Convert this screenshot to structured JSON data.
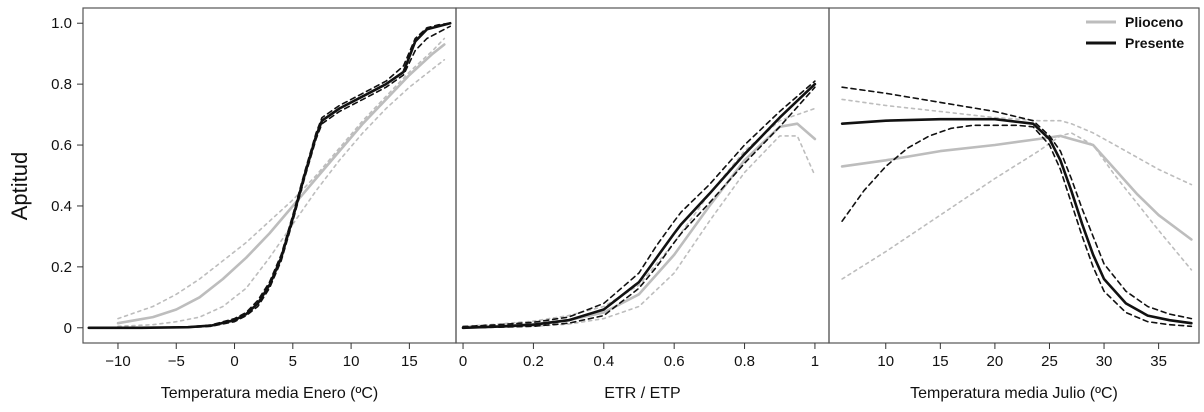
{
  "ylabel": "Aptitud",
  "legend": [
    {
      "label": "Plioceno",
      "color": "#bdbdbd"
    },
    {
      "label": "Presente",
      "color": "#111111"
    }
  ],
  "chart_data": [
    {
      "type": "line",
      "xlabel": "Temperatura media Enero (ºC)",
      "ylabel": "Aptitud",
      "xlim": [
        -13,
        19
      ],
      "ylim": [
        -0.05,
        1.05
      ],
      "xticks": [
        {
          "v": -10,
          "label": "−10"
        },
        {
          "v": -5,
          "label": "−5"
        },
        {
          "v": 0,
          "label": "0"
        },
        {
          "v": 5,
          "label": "5"
        },
        {
          "v": 10,
          "label": "10"
        },
        {
          "v": 15,
          "label": "15"
        }
      ],
      "yticks": [
        {
          "v": 0,
          "label": "0"
        },
        {
          "v": 0.2,
          "label": "0.2"
        },
        {
          "v": 0.4,
          "label": "0.4"
        },
        {
          "v": 0.6,
          "label": "0.6"
        },
        {
          "v": 0.8,
          "label": "0.8"
        },
        {
          "v": 1.0,
          "label": "1.0"
        }
      ],
      "series": [
        {
          "color": "#bdbdbd",
          "style": "solid",
          "x": [
            -10,
            -7,
            -5,
            -3,
            -1,
            1,
            3,
            5,
            7,
            9,
            11,
            13,
            15,
            17,
            18
          ],
          "y": [
            0.015,
            0.035,
            0.06,
            0.1,
            0.16,
            0.23,
            0.31,
            0.4,
            0.49,
            0.58,
            0.67,
            0.75,
            0.83,
            0.9,
            0.93
          ]
        },
        {
          "color": "#bdbdbd",
          "style": "dotted",
          "x": [
            -10,
            -7,
            -5,
            -3,
            -1,
            1,
            3,
            5,
            7,
            9,
            11,
            13,
            15,
            17,
            18
          ],
          "y": [
            0.03,
            0.07,
            0.11,
            0.16,
            0.22,
            0.28,
            0.35,
            0.42,
            0.5,
            0.59,
            0.68,
            0.76,
            0.84,
            0.91,
            0.95
          ]
        },
        {
          "color": "#bdbdbd",
          "style": "dotted",
          "x": [
            -10,
            -7,
            -5,
            -3,
            -1,
            1,
            3,
            5,
            7,
            9,
            11,
            13,
            15,
            17,
            18
          ],
          "y": [
            0.005,
            0.01,
            0.02,
            0.035,
            0.07,
            0.13,
            0.23,
            0.34,
            0.45,
            0.55,
            0.64,
            0.72,
            0.79,
            0.85,
            0.88
          ]
        },
        {
          "color": "#111111",
          "style": "solid",
          "x": [
            -12.5,
            -8,
            -4,
            -2,
            0,
            1,
            2,
            3,
            4,
            5,
            6,
            7,
            7.5,
            9,
            11,
            13,
            14.5,
            15.5,
            16.5,
            17.5,
            18.5
          ],
          "y": [
            0,
            0,
            0.002,
            0.007,
            0.025,
            0.045,
            0.08,
            0.14,
            0.23,
            0.36,
            0.5,
            0.63,
            0.68,
            0.72,
            0.76,
            0.8,
            0.84,
            0.94,
            0.98,
            0.99,
            1.0
          ]
        },
        {
          "color": "#111111",
          "style": "dashed",
          "x": [
            -12.5,
            -8,
            -4,
            -2,
            0,
            1,
            2,
            3,
            4,
            5,
            6,
            7,
            7.5,
            9,
            11,
            13,
            14.5,
            15.5,
            16.5,
            17.5,
            18.5
          ],
          "y": [
            0,
            0,
            0.003,
            0.009,
            0.03,
            0.05,
            0.09,
            0.15,
            0.24,
            0.37,
            0.51,
            0.64,
            0.69,
            0.73,
            0.77,
            0.81,
            0.86,
            0.95,
            0.985,
            0.995,
            1.0
          ]
        },
        {
          "color": "#111111",
          "style": "dashed",
          "x": [
            -12.5,
            -8,
            -4,
            -2,
            0,
            1,
            2,
            3,
            4,
            5,
            6,
            7,
            7.5,
            9,
            11,
            13,
            14.5,
            15.5,
            16.5,
            17.5,
            18.5
          ],
          "y": [
            0,
            0,
            0.001,
            0.005,
            0.02,
            0.04,
            0.07,
            0.13,
            0.22,
            0.35,
            0.49,
            0.62,
            0.67,
            0.71,
            0.75,
            0.79,
            0.83,
            0.91,
            0.95,
            0.97,
            0.99
          ]
        }
      ]
    },
    {
      "type": "line",
      "xlabel": "ETR / ETP",
      "ylabel": "Aptitud",
      "xlim": [
        -0.02,
        1.04
      ],
      "ylim": [
        -0.05,
        1.05
      ],
      "xticks": [
        {
          "v": 0,
          "label": "0"
        },
        {
          "v": 0.2,
          "label": "0.2"
        },
        {
          "v": 0.4,
          "label": "0.4"
        },
        {
          "v": 0.6,
          "label": "0.6"
        },
        {
          "v": 0.8,
          "label": "0.8"
        },
        {
          "v": 1,
          "label": "1"
        }
      ],
      "yticks": [],
      "series": [
        {
          "color": "#bdbdbd",
          "style": "solid",
          "x": [
            0,
            0.1,
            0.2,
            0.3,
            0.4,
            0.5,
            0.6,
            0.7,
            0.8,
            0.9,
            0.95,
            1.0
          ],
          "y": [
            0,
            0.005,
            0.012,
            0.025,
            0.05,
            0.11,
            0.24,
            0.4,
            0.55,
            0.66,
            0.67,
            0.62
          ]
        },
        {
          "color": "#bdbdbd",
          "style": "dotted",
          "x": [
            0,
            0.1,
            0.2,
            0.3,
            0.4,
            0.5,
            0.6,
            0.7,
            0.8,
            0.9,
            0.95,
            1.0
          ],
          "y": [
            0.005,
            0.012,
            0.022,
            0.04,
            0.07,
            0.14,
            0.28,
            0.44,
            0.58,
            0.68,
            0.7,
            0.72
          ]
        },
        {
          "color": "#bdbdbd",
          "style": "dotted",
          "x": [
            0,
            0.1,
            0.2,
            0.3,
            0.4,
            0.5,
            0.6,
            0.7,
            0.8,
            0.9,
            0.95,
            1.0
          ],
          "y": [
            0,
            0.002,
            0.005,
            0.012,
            0.03,
            0.07,
            0.18,
            0.35,
            0.51,
            0.63,
            0.63,
            0.5
          ]
        },
        {
          "color": "#111111",
          "style": "solid",
          "x": [
            0,
            0.1,
            0.2,
            0.3,
            0.4,
            0.5,
            0.55,
            0.6,
            0.62,
            0.7,
            0.8,
            0.9,
            1.0
          ],
          "y": [
            0,
            0.004,
            0.01,
            0.025,
            0.06,
            0.15,
            0.23,
            0.31,
            0.34,
            0.44,
            0.57,
            0.69,
            0.8
          ]
        },
        {
          "color": "#111111",
          "style": "dashed",
          "x": [
            0,
            0.1,
            0.2,
            0.3,
            0.4,
            0.5,
            0.55,
            0.6,
            0.62,
            0.7,
            0.8,
            0.9,
            1.0
          ],
          "y": [
            0.004,
            0.01,
            0.018,
            0.035,
            0.08,
            0.18,
            0.27,
            0.35,
            0.38,
            0.47,
            0.6,
            0.71,
            0.81
          ]
        },
        {
          "color": "#111111",
          "style": "dashed",
          "x": [
            0,
            0.1,
            0.2,
            0.3,
            0.4,
            0.5,
            0.55,
            0.6,
            0.62,
            0.7,
            0.8,
            0.9,
            1.0
          ],
          "y": [
            0,
            0.002,
            0.005,
            0.015,
            0.04,
            0.13,
            0.2,
            0.28,
            0.31,
            0.41,
            0.54,
            0.66,
            0.79
          ]
        }
      ]
    },
    {
      "type": "line",
      "xlabel": "Temperatura media Julio (ºC)",
      "ylabel": "Aptitud",
      "xlim": [
        4.8,
        38.7
      ],
      "ylim": [
        -0.05,
        1.05
      ],
      "xticks": [
        {
          "v": 10,
          "label": "10"
        },
        {
          "v": 15,
          "label": "15"
        },
        {
          "v": 20,
          "label": "20"
        },
        {
          "v": 25,
          "label": "25"
        },
        {
          "v": 30,
          "label": "30"
        },
        {
          "v": 35,
          "label": "35"
        }
      ],
      "yticks": [],
      "series": [
        {
          "color": "#bdbdbd",
          "style": "solid",
          "x": [
            6,
            10,
            15,
            20,
            24,
            26,
            27,
            29,
            31,
            33,
            35,
            38
          ],
          "y": [
            0.53,
            0.55,
            0.58,
            0.6,
            0.62,
            0.63,
            0.62,
            0.6,
            0.52,
            0.44,
            0.37,
            0.29
          ]
        },
        {
          "color": "#bdbdbd",
          "style": "dotted",
          "x": [
            6,
            10,
            15,
            20,
            24,
            26,
            27,
            29,
            31,
            33,
            35,
            38
          ],
          "y": [
            0.16,
            0.25,
            0.37,
            0.49,
            0.58,
            0.63,
            0.64,
            0.6,
            0.5,
            0.41,
            0.32,
            0.19
          ]
        },
        {
          "color": "#bdbdbd",
          "style": "dotted",
          "x": [
            6,
            10,
            15,
            20,
            24,
            26,
            27,
            29,
            31,
            33,
            35,
            38
          ],
          "y": [
            0.75,
            0.73,
            0.71,
            0.69,
            0.68,
            0.68,
            0.67,
            0.64,
            0.6,
            0.56,
            0.52,
            0.47
          ]
        },
        {
          "color": "#111111",
          "style": "solid",
          "x": [
            6,
            10,
            15,
            20,
            23.5,
            25,
            26,
            27,
            28,
            29,
            30,
            32,
            34,
            36,
            38
          ],
          "y": [
            0.67,
            0.68,
            0.685,
            0.685,
            0.67,
            0.62,
            0.55,
            0.45,
            0.34,
            0.24,
            0.16,
            0.08,
            0.04,
            0.025,
            0.015
          ]
        },
        {
          "color": "#111111",
          "style": "dashed",
          "x": [
            6,
            10,
            15,
            20,
            23.5,
            25,
            26,
            27,
            28,
            29,
            30,
            32,
            34,
            36,
            38
          ],
          "y": [
            0.79,
            0.77,
            0.74,
            0.71,
            0.68,
            0.63,
            0.58,
            0.49,
            0.39,
            0.3,
            0.21,
            0.12,
            0.07,
            0.045,
            0.03
          ]
        },
        {
          "color": "#111111",
          "style": "dashed",
          "x": [
            6,
            8,
            10,
            12,
            14,
            16,
            18,
            20,
            22,
            23.5,
            25,
            26,
            27,
            28,
            29,
            30,
            32,
            34,
            36,
            38
          ],
          "y": [
            0.35,
            0.45,
            0.53,
            0.59,
            0.63,
            0.655,
            0.665,
            0.665,
            0.665,
            0.66,
            0.6,
            0.52,
            0.41,
            0.3,
            0.2,
            0.12,
            0.05,
            0.02,
            0.01,
            0.005
          ]
        }
      ]
    }
  ]
}
